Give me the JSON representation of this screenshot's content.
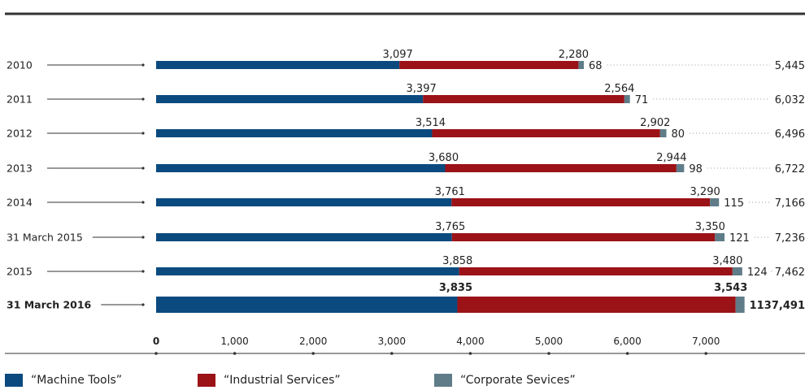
{
  "chart_data": {
    "type": "bar",
    "orientation": "horizontal",
    "stacked": true,
    "categories": [
      "2010",
      "2011",
      "2012",
      "2013",
      "2014",
      "31 March 2015",
      "2015",
      "31 March 2016"
    ],
    "highlight_category": "31 March 2016",
    "series": [
      {
        "name": "“Machine Tools”",
        "color": "#0a4a7f",
        "values": [
          3097,
          3397,
          3514,
          3680,
          3761,
          3765,
          3858,
          3835
        ]
      },
      {
        "name": "“Industrial Services”",
        "color": "#9b1217",
        "values": [
          2280,
          2564,
          2902,
          2944,
          3290,
          3350,
          3480,
          3543
        ]
      },
      {
        "name": "“Corporate Sevices”",
        "color": "#5f7c88",
        "values": [
          68,
          71,
          80,
          98,
          115,
          121,
          124,
          113
        ]
      }
    ],
    "segment_labels": [
      [
        "3,097",
        "2,280",
        "68"
      ],
      [
        "3,397",
        "2,564",
        "71"
      ],
      [
        "3,514",
        "2,902",
        "80"
      ],
      [
        "3,680",
        "2,944",
        "98"
      ],
      [
        "3,761",
        "3,290",
        "115"
      ],
      [
        "3,765",
        "3,350",
        "121"
      ],
      [
        "3,858",
        "3,480",
        "124"
      ],
      [
        "3,835",
        "3,543",
        "113"
      ]
    ],
    "totals": [
      "5,445",
      "6,032",
      "6,496",
      "6,722",
      "7,166",
      "7,236",
      "7,462",
      "7,491"
    ],
    "total_values": [
      5445,
      6032,
      6496,
      6722,
      7166,
      7236,
      7462,
      7491
    ],
    "x_ticks": [
      0,
      1000,
      2000,
      3000,
      4000,
      5000,
      6000,
      7000
    ],
    "x_tick_labels": [
      "0",
      "1,000",
      "2,000",
      "3,000",
      "4,000",
      "5,000",
      "6,000",
      "7,000"
    ],
    "xlim": [
      0,
      7000
    ],
    "grid": false,
    "legend_position": "bottom"
  }
}
